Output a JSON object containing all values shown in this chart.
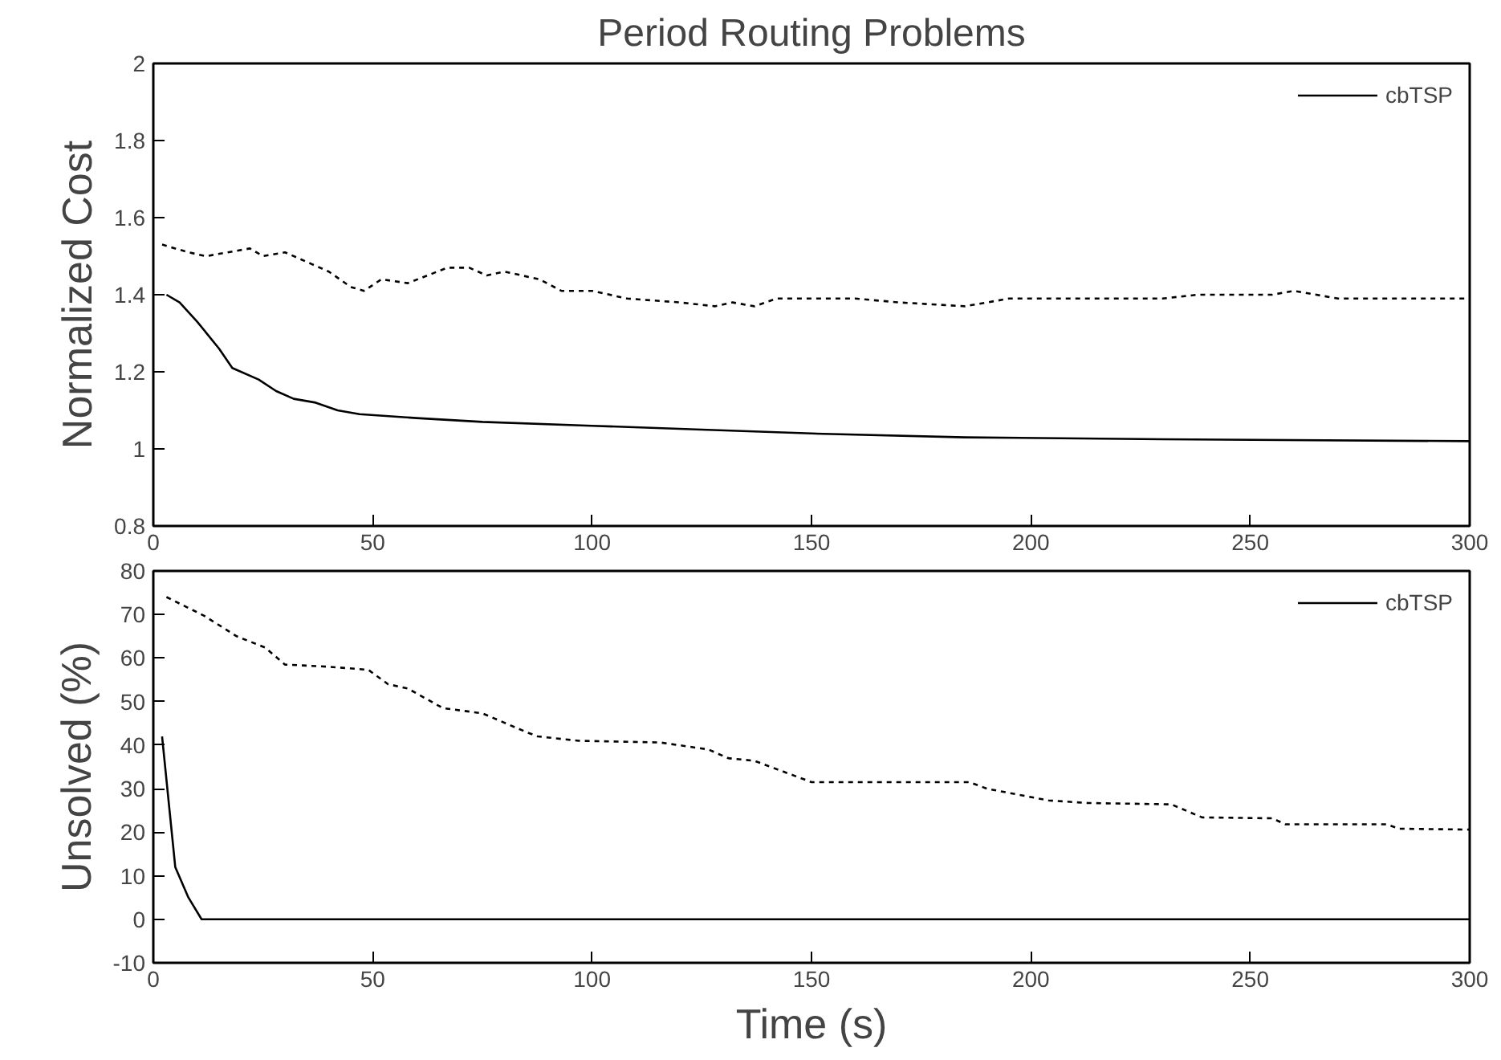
{
  "chart_data": [
    {
      "type": "line",
      "title": "Period Routing Problems",
      "ylabel": "Normalized Cost",
      "xlim": [
        0,
        300
      ],
      "ylim": [
        0.8,
        2
      ],
      "xticks": [
        0,
        50,
        100,
        150,
        200,
        250,
        300
      ],
      "yticks": [
        0.8,
        1,
        1.2,
        1.4,
        1.6,
        1.8,
        2
      ],
      "grid": false,
      "legend": "top right",
      "series": [
        {
          "name": "cbTSP",
          "color": "#000000",
          "line_style": "solid",
          "x": [
            3,
            6,
            10,
            15,
            18,
            24,
            28,
            32,
            37,
            42,
            47,
            60,
            75,
            100,
            125,
            150,
            185,
            230,
            300
          ],
          "values": [
            1.4,
            1.38,
            1.33,
            1.26,
            1.21,
            1.18,
            1.15,
            1.13,
            1.12,
            1.1,
            1.09,
            1.08,
            1.07,
            1.06,
            1.05,
            1.04,
            1.03,
            1.025,
            1.02
          ]
        },
        {
          "color": "#000000",
          "line_style": "dashed",
          "x": [
            2,
            8,
            12,
            17,
            22,
            25,
            30,
            36,
            40,
            45,
            48,
            52,
            58,
            67,
            72,
            76,
            80,
            88,
            93,
            100,
            108,
            120,
            128,
            132,
            137,
            142,
            150,
            160,
            170,
            185,
            195,
            230,
            238,
            255,
            260,
            270,
            300
          ],
          "values": [
            1.53,
            1.51,
            1.5,
            1.51,
            1.52,
            1.5,
            1.51,
            1.48,
            1.46,
            1.42,
            1.41,
            1.44,
            1.43,
            1.47,
            1.47,
            1.45,
            1.46,
            1.44,
            1.41,
            1.41,
            1.39,
            1.38,
            1.37,
            1.38,
            1.37,
            1.39,
            1.39,
            1.39,
            1.38,
            1.37,
            1.39,
            1.39,
            1.4,
            1.4,
            1.41,
            1.39,
            1.39
          ]
        }
      ]
    },
    {
      "type": "line",
      "xlabel": "Time (s)",
      "ylabel": "Unsolved (%)",
      "xlim": [
        0,
        300
      ],
      "ylim": [
        -10,
        80
      ],
      "xticks": [
        0,
        50,
        100,
        150,
        200,
        250,
        300
      ],
      "yticks": [
        -10,
        0,
        10,
        20,
        30,
        40,
        50,
        60,
        70,
        80
      ],
      "grid": false,
      "legend": "top right",
      "series": [
        {
          "name": "cbTSP",
          "color": "#000000",
          "line_style": "solid",
          "x": [
            2,
            5,
            8,
            11,
            300
          ],
          "values": [
            42,
            12,
            5,
            0,
            0
          ]
        },
        {
          "color": "#000000",
          "line_style": "dashed",
          "x": [
            3,
            11.6,
            19,
            25.5,
            30,
            40,
            49,
            53.5,
            58,
            66,
            75,
            85,
            87.6,
            97,
            115.6,
            126.5,
            131,
            137,
            150,
            186,
            190,
            204,
            213,
            232,
            239,
            255,
            258,
            281,
            284,
            300
          ],
          "values": [
            74,
            69.7,
            65,
            62.4,
            58.5,
            58,
            57.3,
            54,
            53,
            48.5,
            47.3,
            43,
            42,
            41,
            40.6,
            39,
            37,
            36.4,
            31.5,
            31.5,
            30,
            27.3,
            26.7,
            26.4,
            23.4,
            23.2,
            21.8,
            21.8,
            20.8,
            20.6
          ]
        }
      ]
    }
  ]
}
